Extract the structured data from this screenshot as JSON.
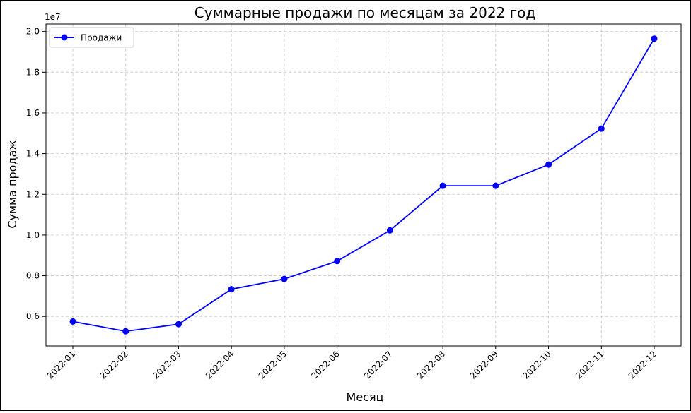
{
  "chart_data": {
    "type": "line",
    "title": "Суммарные продажи по месяцам за 2022 год",
    "xlabel": "Месяц",
    "ylabel": "Сумма продаж",
    "y_offset_label": "1e7",
    "y_scale": 10000000,
    "categories": [
      "2022-01",
      "2022-02",
      "2022-03",
      "2022-04",
      "2022-05",
      "2022-06",
      "2022-07",
      "2022-08",
      "2022-09",
      "2022-10",
      "2022-11",
      "2022-12"
    ],
    "series": [
      {
        "name": "Продажи",
        "color": "#0000ff",
        "values": [
          5750000,
          5270000,
          5620000,
          7340000,
          7840000,
          8720000,
          10230000,
          12420000,
          12420000,
          13460000,
          15230000,
          19650000
        ]
      }
    ],
    "yticks": [
      0.6,
      0.8,
      1.0,
      1.2,
      1.4,
      1.6,
      1.8,
      2.0
    ],
    "ytick_labels": [
      "0.6",
      "0.8",
      "1.0",
      "1.2",
      "1.4",
      "1.6",
      "1.8",
      "2.0"
    ],
    "ylim": [
      4550000,
      20370000
    ],
    "grid": true,
    "grid_style": "dashed",
    "legend_position": "top-left",
    "xtick_rotation": 45
  }
}
